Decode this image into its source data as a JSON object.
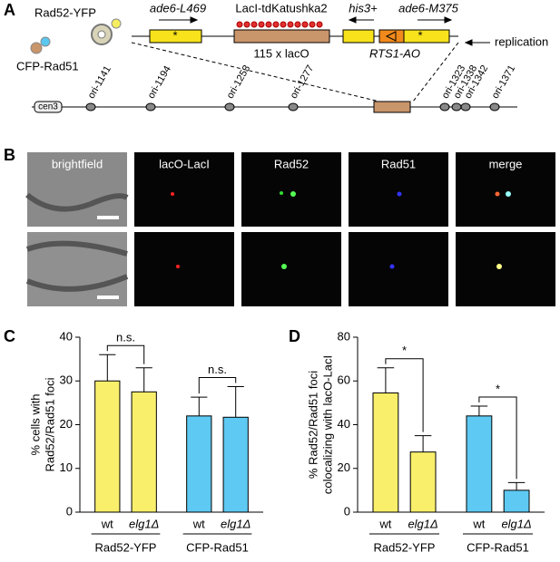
{
  "panels": [
    "A",
    "B",
    "C",
    "D"
  ],
  "diagram": {
    "proteins": [
      "Rad52-YFP",
      "CFP-Rad51"
    ],
    "features": [
      "ade6-L469",
      "LacI-tdKatushka2",
      "his3+",
      "ade6-M375",
      "115 x lacO",
      "RTS1-AO",
      "replication"
    ],
    "marks": [
      "*",
      "*"
    ],
    "centromere": "cen3",
    "origins": [
      "ori-1141",
      "ori-1194",
      "ori-1253",
      "ori-1277",
      "ori-1323",
      "ori-1338",
      "ori-1342",
      "ori-1371"
    ]
  },
  "microscopy": {
    "columns": [
      "brightfield",
      "lacO-LacI",
      "Rad52",
      "Rad51",
      "merge"
    ]
  },
  "chart_data": [
    {
      "type": "bar",
      "ylabel": [
        "% cells with",
        "Rad52/Rad51 foci"
      ],
      "categories": [
        "wt",
        "elg1Δ",
        "wt",
        "elg1Δ"
      ],
      "groups": [
        "Rad52-YFP",
        "CFP-Rad51"
      ],
      "values": [
        30,
        27.5,
        22,
        21.7
      ],
      "errors": [
        6,
        5.5,
        4.3,
        7
      ],
      "colors": [
        "#f9ef6b",
        "#f9ef6b",
        "#5ec9f2",
        "#5ec9f2"
      ],
      "ylim": [
        0,
        40
      ],
      "yticks": [
        0,
        10,
        20,
        30,
        40
      ],
      "annotations": [
        "n.s.",
        "n.s."
      ]
    },
    {
      "type": "bar",
      "ylabel": [
        "% Rad52/Rad51 foci",
        "colocalizing with lacO-LacI"
      ],
      "categories": [
        "wt",
        "elg1Δ",
        "wt",
        "elg1Δ"
      ],
      "groups": [
        "Rad52-YFP",
        "CFP-Rad51"
      ],
      "values": [
        54.5,
        27.5,
        44,
        10
      ],
      "errors": [
        11.5,
        7.5,
        4.5,
        3.5
      ],
      "colors": [
        "#f9ef6b",
        "#f9ef6b",
        "#5ec9f2",
        "#5ec9f2"
      ],
      "ylim": [
        0,
        80
      ],
      "yticks": [
        0,
        20,
        40,
        60,
        80
      ],
      "annotations": [
        "*",
        "*"
      ]
    }
  ]
}
